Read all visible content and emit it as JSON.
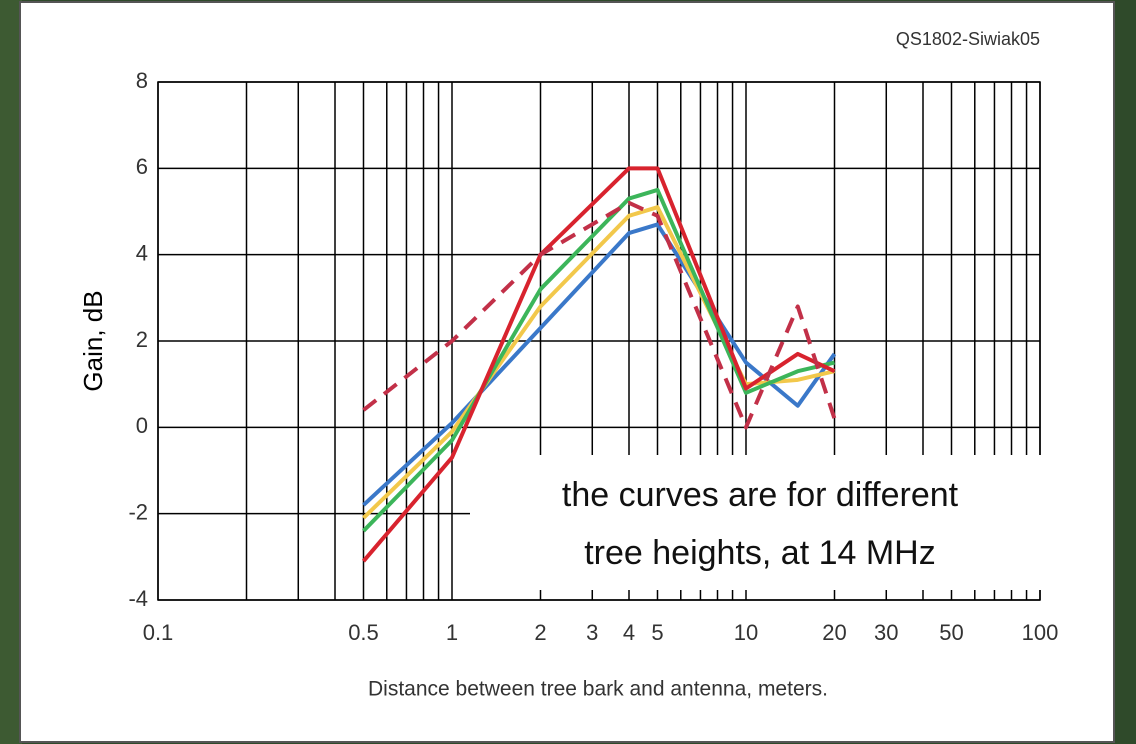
{
  "chart_data": {
    "type": "line",
    "source_label": "QS1802-Siwiak05",
    "x_label": "Distance between tree bark and antenna, meters.",
    "y_label": "Gain, dB",
    "annotation": [
      "the curves are for different",
      "tree heights, at 14 MHz"
    ],
    "x": [
      0.5,
      1,
      2,
      4,
      5,
      10,
      15,
      20
    ],
    "series": [
      {
        "color": "#3a78c9",
        "style": "solid",
        "values": [
          -1.8,
          0.1,
          2.3,
          4.5,
          4.7,
          1.5,
          0.5,
          1.7
        ]
      },
      {
        "color": "#f2c84b",
        "style": "solid",
        "values": [
          -2.1,
          -0.1,
          2.8,
          4.9,
          5.1,
          1.0,
          1.1,
          1.3
        ]
      },
      {
        "color": "#3cb55a",
        "style": "solid",
        "values": [
          -2.4,
          -0.3,
          3.2,
          5.3,
          5.5,
          0.8,
          1.3,
          1.5
        ]
      },
      {
        "color": "#d8232e",
        "style": "solid",
        "values": [
          -3.1,
          -0.7,
          4.0,
          6.0,
          6.0,
          0.9,
          1.7,
          1.3
        ]
      },
      {
        "color": "#c23048",
        "style": "dashed",
        "values": [
          0.4,
          2.0,
          4.0,
          5.2,
          4.9,
          0.0,
          2.8,
          0.2
        ]
      }
    ],
    "x_log": true,
    "xlim": [
      0.1,
      100
    ],
    "xticks": [
      0.1,
      0.5,
      1,
      2,
      3,
      4,
      5,
      10,
      20,
      30,
      50,
      100
    ],
    "x_minor_grid": [
      0.2,
      0.3,
      0.4,
      0.6,
      0.7,
      0.8,
      0.9,
      6,
      7,
      8,
      9,
      40,
      60,
      70,
      80,
      90
    ],
    "ylim": [
      -4,
      8
    ],
    "yticks": [
      -4,
      -2,
      0,
      2,
      4,
      6,
      8
    ],
    "grid": true
  }
}
